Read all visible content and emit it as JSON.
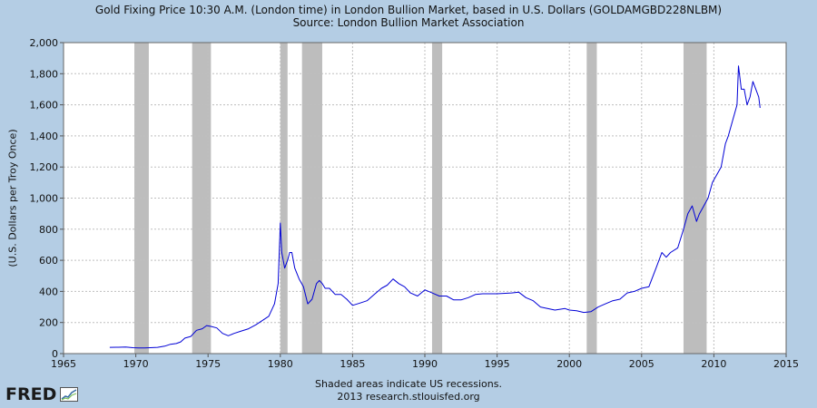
{
  "chart_data": {
    "type": "line",
    "title": "Gold Fixing Price 10:30 A.M. (London time) in London Bullion Market, based in U.S. Dollars (GOLDAMGBD228NLBM)",
    "subtitle": "Source: London Bullion Market Association",
    "ylabel": "(U.S. Dollars per Troy Once)",
    "xlabel": "",
    "xlim": [
      1965,
      2015
    ],
    "ylim": [
      0,
      2000
    ],
    "x_ticks": [
      "1965",
      "1970",
      "1975",
      "1980",
      "1985",
      "1990",
      "1995",
      "2000",
      "2005",
      "2010",
      "2015"
    ],
    "y_ticks": [
      "0",
      "200",
      "400",
      "600",
      "800",
      "1,000",
      "1,200",
      "1,400",
      "1,600",
      "1,800",
      "2,000"
    ],
    "grid": true,
    "legend": "none",
    "recessions": [
      [
        1969.9,
        1970.9
      ],
      [
        1973.9,
        1975.2
      ],
      [
        1980.0,
        1980.5
      ],
      [
        1981.5,
        1982.9
      ],
      [
        1990.5,
        1991.2
      ],
      [
        2001.2,
        2001.9
      ],
      [
        2007.9,
        2009.5
      ]
    ],
    "series": [
      {
        "color": "#0000d6",
        "x": [
          1968.2,
          1968.8,
          1969.3,
          1969.8,
          1970.2,
          1970.6,
          1971.0,
          1971.5,
          1972.0,
          1972.4,
          1972.8,
          1973.1,
          1973.4,
          1973.8,
          1974.2,
          1974.6,
          1974.9,
          1975.2,
          1975.6,
          1976.0,
          1976.4,
          1976.8,
          1977.3,
          1977.8,
          1978.3,
          1978.8,
          1979.2,
          1979.6,
          1979.85,
          1980.0,
          1980.1,
          1980.3,
          1980.5,
          1980.65,
          1980.8,
          1981.0,
          1981.3,
          1981.6,
          1981.9,
          1982.2,
          1982.5,
          1982.7,
          1982.9,
          1983.1,
          1983.4,
          1983.8,
          1984.2,
          1984.6,
          1985.0,
          1985.5,
          1986.0,
          1986.5,
          1987.0,
          1987.4,
          1987.8,
          1988.2,
          1988.6,
          1989.0,
          1989.5,
          1990.0,
          1990.5,
          1991.0,
          1991.5,
          1992.0,
          1992.5,
          1993.0,
          1993.5,
          1994.0,
          1995.0,
          1996.0,
          1996.5,
          1997.0,
          1997.5,
          1998.0,
          1999.0,
          1999.7,
          2000.0,
          2000.5,
          2001.0,
          2001.5,
          2002.0,
          2002.5,
          2003.0,
          2003.5,
          2004.0,
          2004.5,
          2005.0,
          2005.5,
          2006.0,
          2006.4,
          2006.7,
          2007.0,
          2007.5,
          2007.9,
          2008.2,
          2008.5,
          2008.8,
          2009.0,
          2009.3,
          2009.6,
          2009.9,
          2010.2,
          2010.5,
          2010.8,
          2011.0,
          2011.3,
          2011.6,
          2011.7,
          2011.9,
          2012.1,
          2012.3,
          2012.5,
          2012.7,
          2012.9,
          2013.1,
          2013.2
        ],
        "values": [
          40,
          41,
          42,
          38,
          36,
          36,
          38,
          40,
          48,
          60,
          65,
          75,
          100,
          110,
          150,
          160,
          180,
          175,
          165,
          130,
          115,
          130,
          145,
          160,
          185,
          215,
          240,
          320,
          450,
          840,
          650,
          550,
          600,
          650,
          650,
          550,
          480,
          430,
          320,
          350,
          450,
          470,
          450,
          420,
          420,
          380,
          380,
          350,
          310,
          325,
          340,
          380,
          420,
          440,
          480,
          450,
          430,
          390,
          370,
          410,
          390,
          370,
          370,
          345,
          345,
          360,
          380,
          385,
          385,
          390,
          395,
          360,
          340,
          300,
          280,
          290,
          280,
          275,
          265,
          270,
          300,
          320,
          340,
          350,
          390,
          400,
          420,
          430,
          550,
          650,
          620,
          650,
          680,
          800,
          900,
          950,
          850,
          900,
          950,
          1000,
          1100,
          1150,
          1200,
          1350,
          1400,
          1500,
          1600,
          1850,
          1700,
          1700,
          1600,
          1650,
          1750,
          1700,
          1650,
          1580
        ]
      }
    ]
  },
  "footer": {
    "line1": "Shaded areas indicate US recessions.",
    "line2": "2013 research.stlouisfed.org"
  },
  "logo": {
    "text": "FRED"
  }
}
